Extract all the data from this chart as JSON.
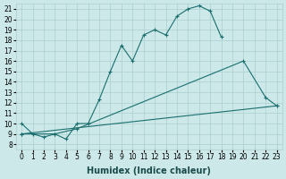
{
  "xlabel": "Humidex (Indice chaleur)",
  "xlim": [
    -0.5,
    23.5
  ],
  "ylim": [
    7.5,
    21.5
  ],
  "yticks": [
    8,
    9,
    10,
    11,
    12,
    13,
    14,
    15,
    16,
    17,
    18,
    19,
    20,
    21
  ],
  "xticks": [
    0,
    1,
    2,
    3,
    4,
    5,
    6,
    7,
    8,
    9,
    10,
    11,
    12,
    13,
    14,
    15,
    16,
    17,
    18,
    19,
    20,
    21,
    22,
    23
  ],
  "bg_color": "#cce8e8",
  "grid_color": "#aacfcf",
  "line_color": "#1a6e6e",
  "lines": [
    {
      "x": [
        0,
        1,
        2,
        3,
        4,
        5,
        6,
        7,
        8,
        9,
        10,
        11,
        12,
        13,
        14,
        15,
        16,
        17,
        18
      ],
      "y": [
        10,
        9,
        8.7,
        9,
        8.5,
        10,
        10,
        12.3,
        15,
        17.5,
        16,
        18.5,
        19,
        18.5,
        20.3,
        21,
        21.3,
        20.8,
        18.3
      ]
    },
    {
      "x": [
        0,
        3,
        5,
        20,
        22,
        23
      ],
      "y": [
        9,
        9,
        9.5,
        16,
        12.5,
        11.7
      ]
    },
    {
      "x": [
        0,
        23
      ],
      "y": [
        9,
        11.7
      ]
    }
  ],
  "title_fontsize": 7,
  "tick_fontsize": 5.5,
  "label_fontsize": 7
}
